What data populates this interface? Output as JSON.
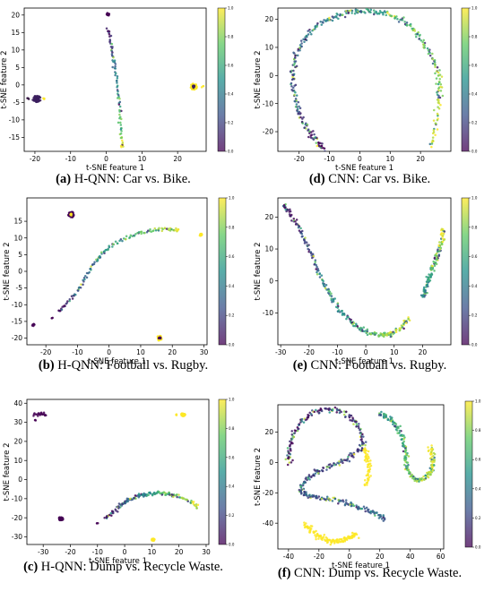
{
  "colorbar": {
    "ticks": [
      "0.0",
      "0.2",
      "0.4",
      "0.6",
      "0.8",
      "1.0"
    ],
    "colors": [
      "#440154",
      "#3b528b",
      "#21918c",
      "#5ec962",
      "#fde725"
    ]
  },
  "chart_data": [
    {
      "id": "a",
      "type": "scatter",
      "caption_label": "(a)",
      "caption_text": "H-QNN: Car vs. Bike.",
      "xlabel": "t-SNE feature 1",
      "ylabel": "t-SNE feature 2",
      "xlim": [
        -23,
        28
      ],
      "ylim": [
        -19,
        22
      ],
      "xticks": [
        -20,
        -10,
        0,
        10,
        20
      ],
      "yticks": [
        -15,
        -10,
        -5,
        0,
        5,
        10,
        15,
        20
      ],
      "clusters": [
        {
          "kind": "blob",
          "x": -19.5,
          "y": -4,
          "rx": 1.2,
          "ry": 0.9,
          "n": 70,
          "color": "#3b1f5e"
        },
        {
          "kind": "blob",
          "x": -22,
          "y": -4,
          "rx": 0.3,
          "ry": 0.3,
          "n": 3,
          "color": "#2a0a3a"
        },
        {
          "kind": "blob",
          "x": -17.5,
          "y": -4,
          "rx": 0.4,
          "ry": 0.2,
          "n": 4,
          "color": "#fde725"
        },
        {
          "kind": "blob",
          "x": 0.5,
          "y": 20.2,
          "rx": 0.4,
          "ry": 0.4,
          "n": 15,
          "color": "#440154"
        },
        {
          "kind": "curve",
          "points": [
            [
              0.5,
              16
            ],
            [
              1.5,
              10
            ],
            [
              2.5,
              4
            ],
            [
              3.5,
              -4
            ],
            [
              4,
              -12
            ],
            [
              4.5,
              -18
            ]
          ],
          "n": 80,
          "spread": 0.2,
          "colorRamp": true
        },
        {
          "kind": "blob",
          "x": 24.5,
          "y": -0.5,
          "rx": 0.9,
          "ry": 0.9,
          "n": 60,
          "color": "#fde725"
        },
        {
          "kind": "blob",
          "x": 24.5,
          "y": -0.5,
          "rx": 0.4,
          "ry": 0.4,
          "n": 12,
          "color": "#3b1f5e"
        },
        {
          "kind": "blob",
          "x": 27,
          "y": -0.5,
          "rx": 0.3,
          "ry": 0.3,
          "n": 3,
          "color": "#fde725"
        }
      ]
    },
    {
      "id": "d",
      "type": "scatter",
      "caption_label": "(d)",
      "caption_text": "CNN: Car vs. Bike.",
      "xlabel": "t-SNE feature 1",
      "ylabel": "t-SNE feature 2",
      "xlim": [
        -27,
        30
      ],
      "ylim": [
        -27,
        24
      ],
      "xticks": [
        -20,
        -10,
        0,
        10,
        20
      ],
      "yticks": [
        -20,
        -10,
        0,
        10,
        20
      ],
      "clusters": [
        {
          "kind": "curve",
          "points": [
            [
              -12,
              -26
            ],
            [
              -16,
              -21
            ],
            [
              -20,
              -13
            ],
            [
              -22,
              -3
            ],
            [
              -21,
              7
            ],
            [
              -16,
              16
            ],
            [
              -8,
              21
            ],
            [
              0,
              23
            ],
            [
              8,
              22
            ],
            [
              16,
              18
            ],
            [
              22,
              10
            ],
            [
              26,
              0
            ],
            [
              26,
              -10
            ],
            [
              24,
              -25
            ]
          ],
          "n": 360,
          "spread": 0.45,
          "colorRamp": true
        }
      ]
    },
    {
      "id": "b",
      "type": "scatter",
      "caption_label": "(b)",
      "caption_text": "H-QNN: Football vs. Rugby.",
      "xlabel": "t-SNE feature 1",
      "ylabel": "t-SNE feature 2",
      "xlim": [
        -26,
        31
      ],
      "ylim": [
        -22,
        22
      ],
      "xticks": [
        -20,
        -10,
        0,
        10,
        20,
        30
      ],
      "yticks": [
        -20,
        -15,
        -10,
        -5,
        0,
        5,
        10,
        15
      ],
      "clusters": [
        {
          "kind": "blob",
          "x": -12,
          "y": 17,
          "rx": 0.9,
          "ry": 0.9,
          "n": 40,
          "color": "#440154"
        },
        {
          "kind": "blob",
          "x": -12,
          "y": 17,
          "rx": 0.3,
          "ry": 0.3,
          "n": 6,
          "color": "#fde725"
        },
        {
          "kind": "blob",
          "x": -24,
          "y": -16,
          "rx": 0.4,
          "ry": 0.4,
          "n": 8,
          "color": "#440154"
        },
        {
          "kind": "blob",
          "x": -18,
          "y": -14,
          "rx": 0.2,
          "ry": 0.2,
          "n": 3,
          "color": "#440154"
        },
        {
          "kind": "curve",
          "points": [
            [
              -16,
              -12
            ],
            [
              -10,
              -6
            ],
            [
              -5,
              2
            ],
            [
              0,
              7
            ],
            [
              8,
              11
            ],
            [
              16,
              12.5
            ],
            [
              22,
              12.5
            ]
          ],
          "n": 130,
          "spread": 0.25,
          "colorRamp": true
        },
        {
          "kind": "blob",
          "x": 16,
          "y": -20,
          "rx": 0.8,
          "ry": 0.8,
          "n": 40,
          "color": "#fde725"
        },
        {
          "kind": "blob",
          "x": 16,
          "y": -20,
          "rx": 0.35,
          "ry": 0.35,
          "n": 8,
          "color": "#440154"
        },
        {
          "kind": "blob",
          "x": 29,
          "y": 11,
          "rx": 0.4,
          "ry": 0.4,
          "n": 10,
          "color": "#fde725"
        }
      ]
    },
    {
      "id": "e",
      "type": "scatter",
      "caption_label": "(e)",
      "caption_text": "CNN: Football vs. Rugby.",
      "xlabel": "t-SNE feature 1",
      "ylabel": "t-SNE feature 2",
      "xlim": [
        -31,
        30
      ],
      "ylim": [
        -20,
        26
      ],
      "xticks": [
        -30,
        -20,
        -10,
        0,
        10,
        20
      ],
      "yticks": [
        -10,
        0,
        10,
        20
      ],
      "clusters": [
        {
          "kind": "curve",
          "points": [
            [
              -29,
              24
            ],
            [
              -24,
              17
            ],
            [
              -19,
              8
            ],
            [
              -14,
              -2
            ],
            [
              -8,
              -10
            ],
            [
              -2,
              -15
            ],
            [
              5,
              -17
            ],
            [
              10,
              -16
            ],
            [
              15,
              -12
            ]
          ],
          "n": 240,
          "spread": 0.4,
          "colorRamp": true
        },
        {
          "kind": "curve",
          "points": [
            [
              20,
              -5
            ],
            [
              22,
              0
            ],
            [
              24,
              5
            ],
            [
              26,
              10
            ],
            [
              27.5,
              16
            ]
          ],
          "n": 120,
          "spread": 0.4,
          "colorRamp": true,
          "rampStart": 0.4
        }
      ]
    },
    {
      "id": "c",
      "type": "scatter",
      "caption_label": "(c)",
      "caption_text": "H-QNN: Dump vs. Recycle Waste.",
      "xlabel": "t-SNE feature 1",
      "ylabel": "t-SNE feature 2",
      "xlim": [
        -36,
        31
      ],
      "ylim": [
        -34,
        42
      ],
      "xticks": [
        -30,
        -20,
        -10,
        0,
        10,
        20,
        30
      ],
      "yticks": [
        -30,
        -20,
        -10,
        0,
        10,
        20,
        30,
        40
      ],
      "clusters": [
        {
          "kind": "curve",
          "points": [
            [
              -33,
              34
            ],
            [
              -31,
              34.5
            ],
            [
              -29,
              34
            ]
          ],
          "n": 20,
          "spread": 0.5,
          "color": "#440154"
        },
        {
          "kind": "blob",
          "x": -33,
          "y": 31,
          "rx": 0.3,
          "ry": 0.3,
          "n": 3,
          "color": "#440154"
        },
        {
          "kind": "blob",
          "x": 21.5,
          "y": 34,
          "rx": 0.8,
          "ry": 0.8,
          "n": 25,
          "color": "#fde725"
        },
        {
          "kind": "blob",
          "x": 19,
          "y": 34,
          "rx": 0.3,
          "ry": 0.3,
          "n": 3,
          "color": "#fde725"
        },
        {
          "kind": "blob",
          "x": -23.5,
          "y": -20.5,
          "rx": 0.9,
          "ry": 0.9,
          "n": 35,
          "color": "#440154"
        },
        {
          "kind": "curve",
          "points": [
            [
              -7,
              -20
            ],
            [
              -2,
              -14
            ],
            [
              3,
              -10
            ],
            [
              8,
              -7.5
            ],
            [
              14,
              -7
            ],
            [
              20,
              -9
            ],
            [
              27,
              -14
            ]
          ],
          "n": 150,
          "spread": 0.5,
          "colorRamp": true
        },
        {
          "kind": "blob",
          "x": -10,
          "y": -23,
          "rx": 0.3,
          "ry": 0.3,
          "n": 3,
          "color": "#440154"
        },
        {
          "kind": "blob",
          "x": 10.5,
          "y": -31.5,
          "rx": 0.6,
          "ry": 0.6,
          "n": 25,
          "color": "#fde725"
        }
      ]
    },
    {
      "id": "f",
      "type": "scatter",
      "caption_label": "(f)",
      "caption_text": "CNN: Dump vs. Recycle Waste.",
      "xlabel": "t-SNE feature 1",
      "ylabel": "t-SNE feature 2",
      "xlim": [
        -47,
        62
      ],
      "ylim": [
        -57,
        38
      ],
      "xticks": [
        -40,
        -20,
        0,
        20,
        40,
        60
      ],
      "yticks": [
        -40,
        -20,
        0,
        20
      ],
      "clusters": [
        {
          "kind": "curve",
          "points": [
            [
              -40,
              0
            ],
            [
              -38,
              15
            ],
            [
              -28,
              30
            ],
            [
              -12,
              35
            ],
            [
              3,
              28
            ],
            [
              9,
              13
            ],
            [
              1,
              4
            ],
            [
              -14,
              -3
            ],
            [
              -27,
              -10
            ],
            [
              -31,
              -20
            ],
            [
              -20,
              -23
            ],
            [
              -5,
              -26
            ],
            [
              10,
              -31
            ],
            [
              23,
              -37
            ]
          ],
          "n": 380,
          "spread": 0.9,
          "colorRamp": true,
          "rampEnd": 0.35
        },
        {
          "kind": "curve",
          "points": [
            [
              20,
              32
            ],
            [
              28,
              27
            ],
            [
              34,
              18
            ],
            [
              37,
              6
            ],
            [
              38,
              -5
            ],
            [
              45,
              -12
            ],
            [
              52,
              -8
            ],
            [
              55,
              0
            ],
            [
              53,
              10
            ]
          ],
          "n": 220,
          "spread": 0.8,
          "colorRamp": true,
          "rampStart": 0.5
        },
        {
          "kind": "curve",
          "points": [
            [
              10,
              9
            ],
            [
              12,
              2
            ],
            [
              13,
              -5
            ],
            [
              11,
              -15
            ]
          ],
          "n": 60,
          "spread": 0.7,
          "color": "#fde725"
        },
        {
          "kind": "curve",
          "points": [
            [
              -29,
              -41
            ],
            [
              -21,
              -48
            ],
            [
              -12,
              -52
            ],
            [
              -3,
              -51
            ],
            [
              4,
              -47
            ]
          ],
          "n": 130,
          "spread": 0.9,
          "color": "#fde725"
        }
      ]
    }
  ]
}
